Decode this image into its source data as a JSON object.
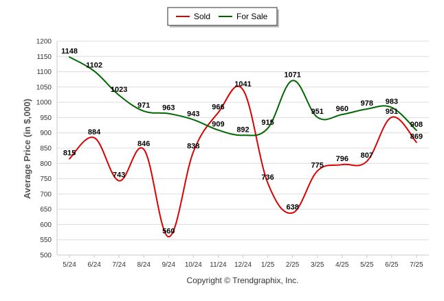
{
  "chart_data": {
    "type": "line",
    "title": "",
    "xlabel": "",
    "ylabel": "Average Price (in $,000)",
    "categories": [
      "5/24",
      "6/24",
      "7/24",
      "8/24",
      "9/24",
      "10/24",
      "11/24",
      "12/24",
      "1/25",
      "2/25",
      "3/25",
      "4/25",
      "5/25",
      "6/25",
      "7/25"
    ],
    "ylim": [
      500,
      1200
    ],
    "yticks": [
      500,
      550,
      600,
      650,
      700,
      750,
      800,
      850,
      900,
      950,
      1000,
      1050,
      1100,
      1150,
      1200
    ],
    "grid": true,
    "legend_position": "top-center",
    "series": [
      {
        "name": "Sold",
        "color": "#dd0000",
        "values": [
          815,
          884,
          743,
          846,
          560,
          838,
          966,
          1041,
          736,
          638,
          775,
          796,
          807,
          951,
          869
        ]
      },
      {
        "name": "For Sale",
        "color": "#006600",
        "values": [
          1148,
          1102,
          1023,
          971,
          963,
          943,
          909,
          892,
          915,
          1071,
          951,
          960,
          978,
          983,
          908
        ]
      }
    ]
  },
  "footer": {
    "copyright": "Copyright © Trendgraphix, Inc."
  }
}
